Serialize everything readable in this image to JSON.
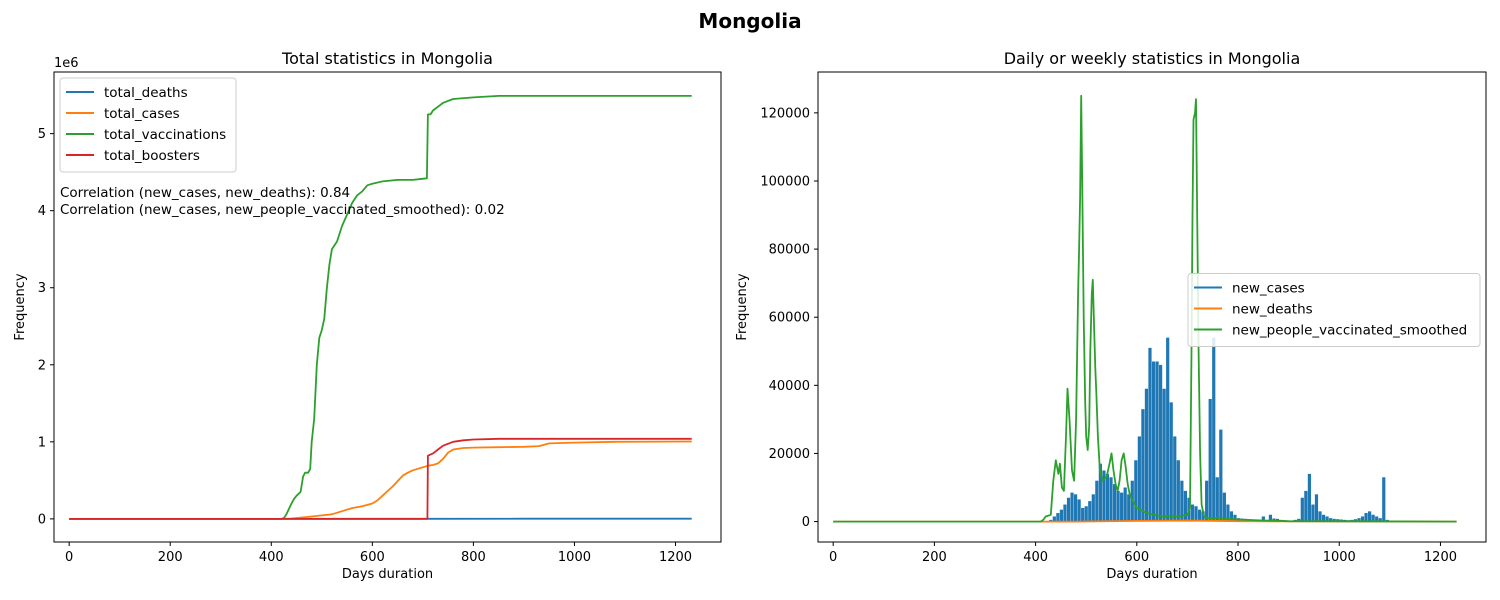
{
  "suptitle": "Mongolia",
  "chart_data": [
    {
      "type": "line",
      "title": "Total statistics in Mongolia",
      "xlabel": "Days duration",
      "ylabel": "Frequency",
      "y_scale_label": "1e6",
      "xlim": [
        -30,
        1290
      ],
      "ylim": [
        -300000,
        5800000
      ],
      "xticks": [
        0,
        200,
        400,
        600,
        800,
        1000,
        1200
      ],
      "yticks": [
        0,
        1000000,
        2000000,
        3000000,
        4000000,
        5000000
      ],
      "ytick_labels": [
        "0",
        "1",
        "2",
        "3",
        "4",
        "5"
      ],
      "legend_position": "upper-left",
      "annotations": [
        "Correlation (new_cases, new_deaths): 0.84",
        "Correlation (new_cases, new_people_vaccinated_smoothed): 0.02"
      ],
      "series": [
        {
          "name": "total_deaths",
          "color": "#1f77b4",
          "points": [
            [
              0,
              0
            ],
            [
              420,
              0
            ],
            [
              520,
              500
            ],
            [
              700,
              1500
            ],
            [
              900,
              2100
            ],
            [
              1232,
              2150
            ]
          ]
        },
        {
          "name": "total_cases",
          "color": "#ff7f0e",
          "points": [
            [
              0,
              0
            ],
            [
              420,
              0
            ],
            [
              440,
              5000
            ],
            [
              470,
              25000
            ],
            [
              500,
              45000
            ],
            [
              520,
              60000
            ],
            [
              540,
              100000
            ],
            [
              560,
              140000
            ],
            [
              580,
              165000
            ],
            [
              600,
              200000
            ],
            [
              610,
              240000
            ],
            [
              620,
              300000
            ],
            [
              630,
              360000
            ],
            [
              640,
              420000
            ],
            [
              650,
              490000
            ],
            [
              660,
              560000
            ],
            [
              670,
              600000
            ],
            [
              680,
              630000
            ],
            [
              690,
              650000
            ],
            [
              700,
              670000
            ],
            [
              710,
              690000
            ],
            [
              720,
              700000
            ],
            [
              730,
              720000
            ],
            [
              740,
              780000
            ],
            [
              750,
              860000
            ],
            [
              760,
              900000
            ],
            [
              780,
              920000
            ],
            [
              800,
              925000
            ],
            [
              850,
              930000
            ],
            [
              900,
              935000
            ],
            [
              930,
              945000
            ],
            [
              950,
              980000
            ],
            [
              1000,
              990000
            ],
            [
              1080,
              1000000
            ],
            [
              1232,
              1005000
            ]
          ]
        },
        {
          "name": "total_vaccinations",
          "color": "#2ca02c",
          "points": [
            [
              0,
              0
            ],
            [
              420,
              0
            ],
            [
              425,
              10000
            ],
            [
              430,
              60000
            ],
            [
              440,
              200000
            ],
            [
              445,
              260000
            ],
            [
              450,
              300000
            ],
            [
              458,
              350000
            ],
            [
              463,
              550000
            ],
            [
              467,
              600000
            ],
            [
              473,
              600000
            ],
            [
              477,
              650000
            ],
            [
              480,
              1000000
            ],
            [
              485,
              1300000
            ],
            [
              490,
              2000000
            ],
            [
              495,
              2350000
            ],
            [
              500,
              2450000
            ],
            [
              505,
              2600000
            ],
            [
              510,
              3000000
            ],
            [
              515,
              3300000
            ],
            [
              520,
              3500000
            ],
            [
              530,
              3600000
            ],
            [
              540,
              3800000
            ],
            [
              550,
              3950000
            ],
            [
              560,
              4100000
            ],
            [
              570,
              4200000
            ],
            [
              580,
              4250000
            ],
            [
              590,
              4330000
            ],
            [
              600,
              4350000
            ],
            [
              620,
              4380000
            ],
            [
              650,
              4400000
            ],
            [
              680,
              4400000
            ],
            [
              708,
              4420000
            ],
            [
              710,
              5250000
            ],
            [
              715,
              5250000
            ],
            [
              720,
              5300000
            ],
            [
              740,
              5400000
            ],
            [
              760,
              5450000
            ],
            [
              800,
              5470000
            ],
            [
              850,
              5490000
            ],
            [
              1000,
              5490000
            ],
            [
              1232,
              5490000
            ]
          ]
        },
        {
          "name": "total_boosters",
          "color": "#d62728",
          "points": [
            [
              0,
              0
            ],
            [
              709,
              0
            ],
            [
              710,
              820000
            ],
            [
              720,
              850000
            ],
            [
              730,
              900000
            ],
            [
              740,
              950000
            ],
            [
              760,
              1000000
            ],
            [
              780,
              1020000
            ],
            [
              800,
              1030000
            ],
            [
              850,
              1040000
            ],
            [
              1232,
              1040000
            ]
          ]
        }
      ]
    },
    {
      "type": "bar+line",
      "title": "Daily or weekly statistics in Mongolia",
      "xlabel": "Days duration",
      "ylabel": "Frequency",
      "xlim": [
        -30,
        1290
      ],
      "ylim": [
        -6000,
        132000
      ],
      "xticks": [
        0,
        200,
        400,
        600,
        800,
        1000,
        1200
      ],
      "yticks": [
        0,
        20000,
        40000,
        60000,
        80000,
        100000,
        120000
      ],
      "legend_position": "center-right",
      "bars": {
        "name": "new_cases",
        "color": "#1f77b4",
        "x": [
          430,
          437,
          444,
          451,
          458,
          465,
          472,
          479,
          486,
          493,
          500,
          507,
          514,
          521,
          528,
          535,
          542,
          549,
          556,
          563,
          570,
          577,
          584,
          591,
          598,
          605,
          612,
          619,
          626,
          633,
          640,
          647,
          654,
          661,
          668,
          675,
          682,
          689,
          696,
          703,
          710,
          717,
          724,
          731,
          738,
          745,
          752,
          759,
          766,
          773,
          780,
          787,
          794,
          801,
          808,
          815,
          822,
          829,
          836,
          843,
          850,
          857,
          864,
          871,
          878,
          885,
          892,
          899,
          906,
          913,
          920,
          927,
          934,
          941,
          948,
          955,
          962,
          969,
          976,
          983,
          990,
          997,
          1004,
          1011,
          1018,
          1025,
          1032,
          1039,
          1046,
          1053,
          1060,
          1067,
          1074,
          1081,
          1088,
          1095,
          1102,
          1109
        ],
        "y": [
          500,
          1500,
          2500,
          3500,
          5000,
          7000,
          8500,
          8000,
          6500,
          4000,
          4500,
          6000,
          8000,
          12000,
          17000,
          15000,
          14000,
          13000,
          11000,
          9000,
          8500,
          10000,
          8000,
          12000,
          18000,
          25000,
          33000,
          39000,
          51000,
          47000,
          47000,
          46000,
          39000,
          54000,
          35000,
          25000,
          18000,
          12000,
          9000,
          7000,
          5000,
          4500,
          3500,
          3000,
          12000,
          36000,
          54000,
          13000,
          27000,
          8500,
          5000,
          3000,
          2000,
          1000,
          900,
          800,
          700,
          600,
          500,
          400,
          1500,
          500,
          2000,
          900,
          800,
          500,
          400,
          300,
          200,
          500,
          800,
          7000,
          9000,
          14000,
          5000,
          8000,
          3000,
          2000,
          1500,
          1000,
          800,
          700,
          600,
          500,
          400,
          500,
          700,
          1000,
          1500,
          2500,
          3000,
          2000,
          1500,
          1000,
          13000,
          500,
          300,
          200
        ]
      },
      "series": [
        {
          "name": "new_deaths",
          "color": "#ff7f0e",
          "points": [
            [
              0,
              0
            ],
            [
              400,
              0
            ],
            [
              420,
              0
            ],
            [
              480,
              0
            ],
            [
              600,
              200
            ],
            [
              700,
              300
            ],
            [
              800,
              100
            ],
            [
              900,
              50
            ],
            [
              1232,
              0
            ]
          ]
        },
        {
          "name": "new_people_vaccinated_smoothed",
          "color": "#2ca02c",
          "points": [
            [
              0,
              0
            ],
            [
              410,
              0
            ],
            [
              415,
              500
            ],
            [
              420,
              1500
            ],
            [
              430,
              2000
            ],
            [
              435,
              12000
            ],
            [
              440,
              18000
            ],
            [
              445,
              14000
            ],
            [
              448,
              17000
            ],
            [
              452,
              10000
            ],
            [
              456,
              9000
            ],
            [
              460,
              25000
            ],
            [
              463,
              39000
            ],
            [
              467,
              30000
            ],
            [
              472,
              15000
            ],
            [
              476,
              12000
            ],
            [
              480,
              30000
            ],
            [
              484,
              67000
            ],
            [
              486,
              80000
            ],
            [
              488,
              95000
            ],
            [
              490,
              125000
            ],
            [
              492,
              100000
            ],
            [
              495,
              60000
            ],
            [
              498,
              35000
            ],
            [
              500,
              25000
            ],
            [
              503,
              21000
            ],
            [
              506,
              28000
            ],
            [
              508,
              50000
            ],
            [
              511,
              67000
            ],
            [
              513,
              71000
            ],
            [
              516,
              55000
            ],
            [
              518,
              45000
            ],
            [
              520,
              38000
            ],
            [
              523,
              25000
            ],
            [
              527,
              15000
            ],
            [
              532,
              12000
            ],
            [
              540,
              13000
            ],
            [
              546,
              17000
            ],
            [
              550,
              20000
            ],
            [
              554,
              15000
            ],
            [
              558,
              11000
            ],
            [
              562,
              9000
            ],
            [
              566,
              12000
            ],
            [
              570,
              18000
            ],
            [
              574,
              20000
            ],
            [
              578,
              16000
            ],
            [
              582,
              11000
            ],
            [
              586,
              8000
            ],
            [
              592,
              6000
            ],
            [
              600,
              4000
            ],
            [
              620,
              2500
            ],
            [
              650,
              1500
            ],
            [
              680,
              1500
            ],
            [
              700,
              2000
            ],
            [
              705,
              4000
            ],
            [
              708,
              50000
            ],
            [
              710,
              90000
            ],
            [
              712,
              118000
            ],
            [
              715,
              120000
            ],
            [
              717,
              124000
            ],
            [
              719,
              95000
            ],
            [
              722,
              50000
            ],
            [
              725,
              20000
            ],
            [
              728,
              5000
            ],
            [
              733,
              1500
            ],
            [
              740,
              1000
            ],
            [
              760,
              1000
            ],
            [
              800,
              600
            ],
            [
              850,
              300
            ],
            [
              900,
              100
            ],
            [
              1232,
              0
            ]
          ]
        }
      ]
    }
  ]
}
